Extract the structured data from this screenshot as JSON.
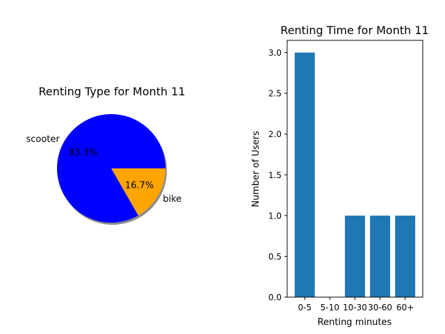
{
  "chart_data": [
    {
      "type": "pie",
      "title": "Renting Type for Month 11",
      "slices": [
        {
          "label": "scooter",
          "value": 83.3,
          "pct_label": "83.3%",
          "color": "#0000ff"
        },
        {
          "label": "bike",
          "value": 16.7,
          "pct_label": "16.7%",
          "color": "#ffa500"
        }
      ],
      "shadow": true
    },
    {
      "type": "bar",
      "title": "Renting Time for Month 11",
      "xlabel": "Renting minutes",
      "ylabel": "Number of Users",
      "categories": [
        "0-5",
        "5-10",
        "10-30",
        "30-60",
        "60+"
      ],
      "values": [
        3,
        0,
        1,
        1,
        1
      ],
      "ylim": [
        0,
        3.15
      ],
      "yticks": [
        "0.0",
        "0.5",
        "1.0",
        "1.5",
        "2.0",
        "2.5",
        "3.0"
      ],
      "color": "#1f77b4",
      "grid": false
    }
  ]
}
